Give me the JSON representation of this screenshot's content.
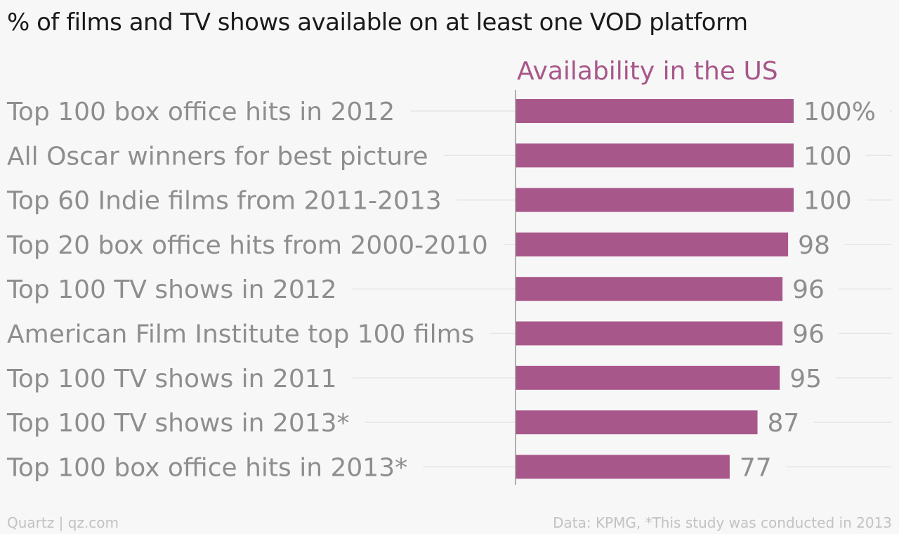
{
  "title": "% of films and TV shows available on at least one VOD platform",
  "footer": {
    "source_left": "Quartz | qz.com",
    "source_right": "Data: KPMG, *This study was conducted in 2013"
  },
  "colors": {
    "bar": "#a8578a",
    "series_title": "#a8578a",
    "label": "#8e8e8e",
    "grid": "#e6e6e6",
    "axis": "#999999",
    "background": "#f7f7f7"
  },
  "chart_data": {
    "type": "bar",
    "orientation": "horizontal",
    "title": "% of films and TV shows available on at least one VOD platform",
    "categories": [
      "Top 100 box office hits in 2012",
      "All Oscar winners for best picture",
      "Top 60 Indie films from 2011-2013",
      "Top 20 box office hits from 2000-2010",
      "Top 100 TV shows in 2012",
      "American Film Institute top 100 films",
      "Top 100 TV shows in 2011",
      "Top 100 TV shows in 2013*",
      "Top 100 box office hits in 2013*"
    ],
    "series": [
      {
        "name": "Availability in the US",
        "values": [
          100,
          100,
          100,
          98,
          96,
          96,
          95,
          87,
          77
        ]
      }
    ],
    "value_labels": [
      "100%",
      "100",
      "100",
      "98",
      "96",
      "96",
      "95",
      "87",
      "77"
    ],
    "xlim": [
      0,
      100
    ],
    "grid": true,
    "legend": "none"
  }
}
